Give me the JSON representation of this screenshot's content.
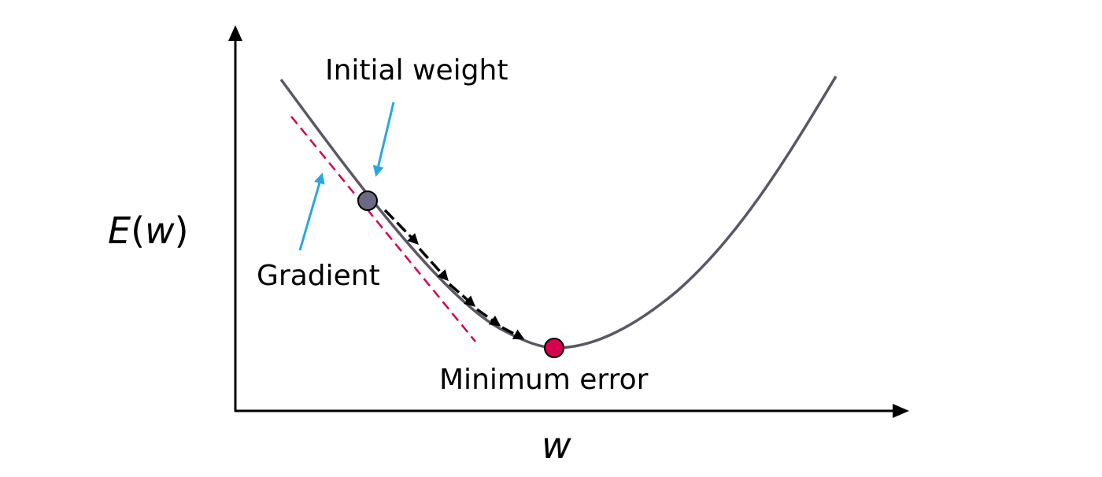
{
  "labels": {
    "initial_weight": "Initial weight",
    "gradient": "Gradient",
    "minimum_error": "Minimum error",
    "y_axis_fn": "E",
    "y_axis_open": "(",
    "y_axis_var": "w",
    "y_axis_close": ")",
    "x_axis": "w"
  },
  "colors": {
    "curve": "#5b5766",
    "initial_point": "#6b6a82",
    "minimum_point": "#d6004f",
    "tangent": "#d6004f",
    "pointer_arrows": "#29a8e0",
    "step_arrows": "#000000",
    "axes": "#000000"
  }
}
